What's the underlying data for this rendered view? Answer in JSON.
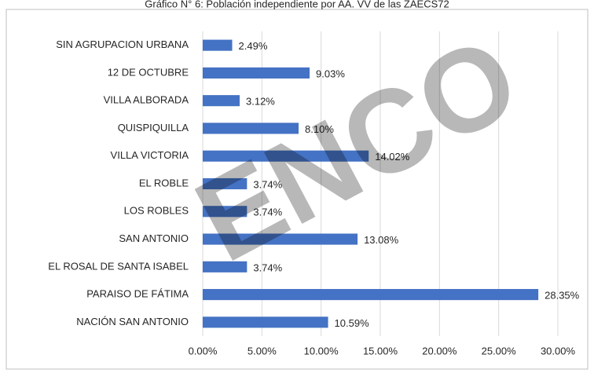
{
  "chart_data": {
    "type": "bar",
    "orientation": "horizontal",
    "title": "Gráfico N° 6: Población independiente por AA. VV de las ZAECS72",
    "watermark": "ENCO",
    "categories": [
      "SIN AGRUPACION URBANA",
      "12 DE OCTUBRE",
      "VILLA ALBORADA",
      "QUISPIQUILLA",
      "VILLA VICTORIA",
      "EL ROBLE",
      "LOS ROBLES",
      "SAN ANTONIO",
      "EL ROSAL DE SANTA ISABEL",
      "PARAISO DE FÁTIMA",
      "NACIÓN SAN ANTONIO"
    ],
    "values": [
      2.49,
      9.03,
      3.12,
      8.1,
      14.02,
      3.74,
      3.74,
      13.08,
      3.74,
      28.35,
      10.59
    ],
    "value_labels": [
      "2.49%",
      "9.03%",
      "3.12%",
      "8.10%",
      "14.02%",
      "3.74%",
      "3.74%",
      "13.08%",
      "3.74%",
      "28.35%",
      "10.59%"
    ],
    "color": "#4472c4",
    "xlim": [
      0,
      30
    ],
    "xticks": [
      {
        "value": 0,
        "label": "0.00%"
      },
      {
        "value": 5,
        "label": "5.00%"
      },
      {
        "value": 10,
        "label": "10.00%"
      },
      {
        "value": 15,
        "label": "15.00%"
      },
      {
        "value": 20,
        "label": "20.00%"
      },
      {
        "value": 25,
        "label": "25.00%"
      },
      {
        "value": 30,
        "label": "30.00%"
      }
    ],
    "grid": true
  }
}
